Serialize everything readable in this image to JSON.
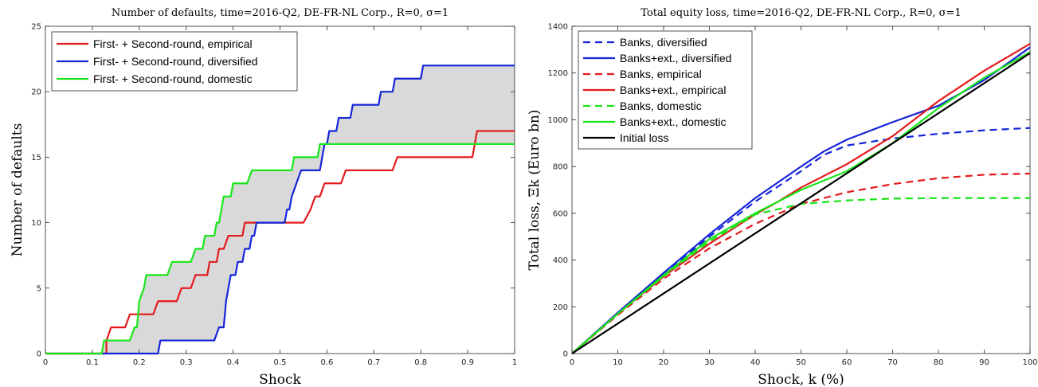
{
  "chart_data": [
    {
      "type": "line",
      "title": "Number of defaults, time=2016-Q2, DE-FR-NL Corp., R=0, σ=1",
      "xlabel": "Shock",
      "ylabel": "Number of defaults",
      "xlim": [
        0,
        1
      ],
      "ylim": [
        0,
        25
      ],
      "xticks": [
        0,
        0.1,
        0.2,
        0.3,
        0.4,
        0.5,
        0.6,
        0.7,
        0.8,
        0.9,
        1
      ],
      "yticks": [
        0,
        5,
        10,
        15,
        20,
        25
      ],
      "grid": false,
      "legend_position": "top-left",
      "step": true,
      "shaded_band": {
        "between": [
          "First- + Second-round, diversified",
          "First- + Second-round, domestic"
        ],
        "color": "#d9d9d9"
      },
      "series": [
        {
          "name": "First- + Second-round, empirical",
          "color": "#e31a1c",
          "dash": "solid",
          "points": [
            [
              0,
              0
            ],
            [
              0.13,
              0
            ],
            [
              0.13,
              1
            ],
            [
              0.14,
              2
            ],
            [
              0.17,
              2
            ],
            [
              0.18,
              3
            ],
            [
              0.23,
              3
            ],
            [
              0.24,
              4
            ],
            [
              0.28,
              4
            ],
            [
              0.29,
              5
            ],
            [
              0.31,
              5
            ],
            [
              0.32,
              6
            ],
            [
              0.345,
              6
            ],
            [
              0.35,
              7
            ],
            [
              0.365,
              7
            ],
            [
              0.37,
              8
            ],
            [
              0.38,
              8
            ],
            [
              0.39,
              9
            ],
            [
              0.42,
              9
            ],
            [
              0.425,
              10
            ],
            [
              0.55,
              10
            ],
            [
              0.565,
              11
            ],
            [
              0.575,
              12
            ],
            [
              0.585,
              12
            ],
            [
              0.595,
              13
            ],
            [
              0.63,
              13
            ],
            [
              0.64,
              14
            ],
            [
              0.74,
              14
            ],
            [
              0.75,
              15
            ],
            [
              0.91,
              15
            ],
            [
              0.92,
              17
            ],
            [
              1,
              17
            ]
          ]
        },
        {
          "name": "First- + Second-round, diversified",
          "color": "#1524d9",
          "dash": "solid",
          "points": [
            [
              0,
              0
            ],
            [
              0.24,
              0
            ],
            [
              0.245,
              1
            ],
            [
              0.36,
              1
            ],
            [
              0.37,
              2
            ],
            [
              0.38,
              2
            ],
            [
              0.385,
              4
            ],
            [
              0.39,
              5
            ],
            [
              0.395,
              6
            ],
            [
              0.405,
              6
            ],
            [
              0.41,
              7
            ],
            [
              0.42,
              7
            ],
            [
              0.425,
              8
            ],
            [
              0.435,
              8
            ],
            [
              0.44,
              9
            ],
            [
              0.445,
              9
            ],
            [
              0.45,
              10
            ],
            [
              0.51,
              10
            ],
            [
              0.515,
              11
            ],
            [
              0.52,
              11
            ],
            [
              0.525,
              12
            ],
            [
              0.535,
              13
            ],
            [
              0.545,
              14
            ],
            [
              0.585,
              14
            ],
            [
              0.59,
              15
            ],
            [
              0.595,
              16
            ],
            [
              0.6,
              16
            ],
            [
              0.605,
              17
            ],
            [
              0.62,
              17
            ],
            [
              0.625,
              18
            ],
            [
              0.65,
              18
            ],
            [
              0.655,
              19
            ],
            [
              0.71,
              19
            ],
            [
              0.715,
              20
            ],
            [
              0.74,
              20
            ],
            [
              0.745,
              21
            ],
            [
              0.8,
              21
            ],
            [
              0.805,
              22
            ],
            [
              1,
              22
            ]
          ]
        },
        {
          "name": "First- + Second-round, domestic",
          "color": "#19e619",
          "dash": "solid",
          "points": [
            [
              0,
              0
            ],
            [
              0.12,
              0
            ],
            [
              0.125,
              1
            ],
            [
              0.18,
              1
            ],
            [
              0.19,
              2
            ],
            [
              0.195,
              2
            ],
            [
              0.2,
              4
            ],
            [
              0.21,
              5
            ],
            [
              0.215,
              6
            ],
            [
              0.26,
              6
            ],
            [
              0.27,
              7
            ],
            [
              0.31,
              7
            ],
            [
              0.32,
              8
            ],
            [
              0.335,
              8
            ],
            [
              0.34,
              9
            ],
            [
              0.36,
              9
            ],
            [
              0.365,
              10
            ],
            [
              0.37,
              10
            ],
            [
              0.375,
              11
            ],
            [
              0.38,
              12
            ],
            [
              0.395,
              12
            ],
            [
              0.4,
              13
            ],
            [
              0.43,
              13
            ],
            [
              0.44,
              14
            ],
            [
              0.525,
              14
            ],
            [
              0.53,
              15
            ],
            [
              0.58,
              15
            ],
            [
              0.585,
              16
            ],
            [
              1,
              16
            ]
          ]
        }
      ]
    },
    {
      "type": "line",
      "title": "Total equity loss, time=2016-Q2, DE-FR-NL Corp., R=0, σ=1",
      "xlabel": "Shock, k (%)",
      "ylabel": "Total loss, Ξk (Euro bn)",
      "xlim": [
        0,
        100
      ],
      "ylim": [
        0,
        1400
      ],
      "xticks": [
        0,
        10,
        20,
        30,
        40,
        50,
        60,
        70,
        80,
        90,
        100
      ],
      "yticks": [
        0,
        200,
        400,
        600,
        800,
        1000,
        1200,
        1400
      ],
      "grid": false,
      "legend_position": "top-left",
      "step": false,
      "series": [
        {
          "name": "Banks, diversified",
          "color": "#1524d9",
          "dash": "dashed",
          "points": [
            [
              0,
              0
            ],
            [
              10,
              170
            ],
            [
              20,
              340
            ],
            [
              30,
              500
            ],
            [
              40,
              650
            ],
            [
              50,
              780
            ],
            [
              55,
              850
            ],
            [
              60,
              890
            ],
            [
              70,
              920
            ],
            [
              80,
              940
            ],
            [
              90,
              955
            ],
            [
              100,
              965
            ]
          ]
        },
        {
          "name": "Banks+ext., diversified",
          "color": "#1524d9",
          "dash": "solid",
          "points": [
            [
              0,
              0
            ],
            [
              10,
              175
            ],
            [
              20,
              345
            ],
            [
              30,
              510
            ],
            [
              40,
              665
            ],
            [
              50,
              800
            ],
            [
              55,
              865
            ],
            [
              60,
              915
            ],
            [
              70,
              990
            ],
            [
              80,
              1060
            ],
            [
              90,
              1170
            ],
            [
              100,
              1310
            ]
          ]
        },
        {
          "name": "Banks, empirical",
          "color": "#e31a1c",
          "dash": "dashed",
          "points": [
            [
              0,
              0
            ],
            [
              10,
              165
            ],
            [
              20,
              320
            ],
            [
              30,
              450
            ],
            [
              40,
              555
            ],
            [
              50,
              640
            ],
            [
              60,
              690
            ],
            [
              70,
              725
            ],
            [
              80,
              750
            ],
            [
              90,
              765
            ],
            [
              100,
              770
            ]
          ]
        },
        {
          "name": "Banks+ext., empirical",
          "color": "#e31a1c",
          "dash": "solid",
          "points": [
            [
              0,
              0
            ],
            [
              10,
              170
            ],
            [
              20,
              330
            ],
            [
              30,
              470
            ],
            [
              40,
              595
            ],
            [
              45,
              650
            ],
            [
              50,
              710
            ],
            [
              60,
              810
            ],
            [
              70,
              930
            ],
            [
              80,
              1080
            ],
            [
              90,
              1210
            ],
            [
              100,
              1325
            ]
          ]
        },
        {
          "name": "Banks, domestic",
          "color": "#19e619",
          "dash": "dashed",
          "points": [
            [
              0,
              0
            ],
            [
              10,
              170
            ],
            [
              20,
              330
            ],
            [
              30,
              480
            ],
            [
              40,
              595
            ],
            [
              50,
              640
            ],
            [
              60,
              655
            ],
            [
              70,
              663
            ],
            [
              80,
              665
            ],
            [
              90,
              665
            ],
            [
              100,
              665
            ]
          ]
        },
        {
          "name": "Banks+ext., domestic",
          "color": "#19e619",
          "dash": "solid",
          "points": [
            [
              0,
              0
            ],
            [
              10,
              170
            ],
            [
              20,
              335
            ],
            [
              30,
              490
            ],
            [
              40,
              600
            ],
            [
              45,
              650
            ],
            [
              50,
              700
            ],
            [
              60,
              780
            ],
            [
              70,
              900
            ],
            [
              80,
              1050
            ],
            [
              90,
              1180
            ],
            [
              100,
              1290
            ]
          ]
        },
        {
          "name": "Initial loss",
          "color": "#000000",
          "dash": "solid",
          "points": [
            [
              0,
              0
            ],
            [
              100,
              1285
            ]
          ]
        }
      ]
    }
  ]
}
